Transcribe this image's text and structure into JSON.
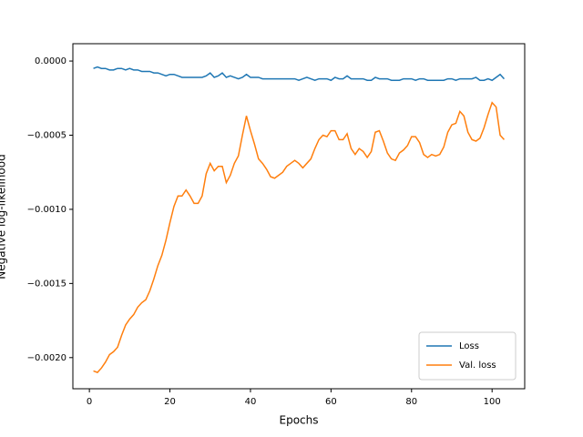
{
  "chart_data": {
    "type": "line",
    "x_label": "Epochs",
    "y_label": "Negative log-likelihood",
    "x": [
      1,
      2,
      3,
      4,
      5,
      6,
      7,
      8,
      9,
      10,
      11,
      12,
      13,
      14,
      15,
      16,
      17,
      18,
      19,
      20,
      21,
      22,
      23,
      24,
      25,
      26,
      27,
      28,
      29,
      30,
      31,
      32,
      33,
      34,
      35,
      36,
      37,
      38,
      39,
      40,
      41,
      42,
      43,
      44,
      45,
      46,
      47,
      48,
      49,
      50,
      51,
      52,
      53,
      54,
      55,
      56,
      57,
      58,
      59,
      60,
      61,
      62,
      63,
      64,
      65,
      66,
      67,
      68,
      69,
      70,
      71,
      72,
      73,
      74,
      75,
      76,
      77,
      78,
      79,
      80,
      81,
      82,
      83,
      84,
      85,
      86,
      87,
      88,
      89,
      90,
      91,
      92,
      93,
      94,
      95,
      96,
      97,
      98,
      99,
      100,
      101,
      102,
      103
    ],
    "series": [
      {
        "name": "Loss",
        "color": "#1f77b4",
        "values": [
          -5e-05,
          -4e-05,
          -5e-05,
          -5e-05,
          -6e-05,
          -6e-05,
          -5e-05,
          -5e-05,
          -6e-05,
          -5e-05,
          -6e-05,
          -6e-05,
          -7e-05,
          -7e-05,
          -7e-05,
          -8e-05,
          -8e-05,
          -9e-05,
          -0.0001,
          -9e-05,
          -9e-05,
          -0.0001,
          -0.00011,
          -0.00011,
          -0.00011,
          -0.00011,
          -0.00011,
          -0.00011,
          -0.0001,
          -8e-05,
          -0.00011,
          -0.0001,
          -8e-05,
          -0.00011,
          -0.0001,
          -0.00011,
          -0.00012,
          -0.00011,
          -9e-05,
          -0.00011,
          -0.00011,
          -0.00011,
          -0.00012,
          -0.00012,
          -0.00012,
          -0.00012,
          -0.00012,
          -0.00012,
          -0.00012,
          -0.00012,
          -0.00012,
          -0.00013,
          -0.00012,
          -0.00011,
          -0.00012,
          -0.00013,
          -0.00012,
          -0.00012,
          -0.00012,
          -0.00013,
          -0.00011,
          -0.00012,
          -0.00012,
          -0.0001,
          -0.00012,
          -0.00012,
          -0.00012,
          -0.00012,
          -0.00013,
          -0.00013,
          -0.00011,
          -0.00012,
          -0.00012,
          -0.00012,
          -0.00013,
          -0.00013,
          -0.00013,
          -0.00012,
          -0.00012,
          -0.00012,
          -0.00013,
          -0.00012,
          -0.00012,
          -0.00013,
          -0.00013,
          -0.00013,
          -0.00013,
          -0.00013,
          -0.00012,
          -0.00012,
          -0.00013,
          -0.00012,
          -0.00012,
          -0.00012,
          -0.00012,
          -0.00011,
          -0.00013,
          -0.00013,
          -0.00012,
          -0.00013,
          -0.00011,
          -9e-05,
          -0.00012
        ]
      },
      {
        "name": "Val. loss",
        "color": "#ff7f0e",
        "values": [
          -0.00209,
          -0.0021,
          -0.00207,
          -0.00203,
          -0.00198,
          -0.00196,
          -0.00193,
          -0.00185,
          -0.00178,
          -0.00174,
          -0.00171,
          -0.00166,
          -0.00163,
          -0.00161,
          -0.00155,
          -0.00147,
          -0.00138,
          -0.00131,
          -0.00121,
          -0.00109,
          -0.00098,
          -0.00091,
          -0.00091,
          -0.00087,
          -0.00091,
          -0.00096,
          -0.00096,
          -0.00091,
          -0.00076,
          -0.00069,
          -0.00074,
          -0.00071,
          -0.00071,
          -0.00082,
          -0.00077,
          -0.00069,
          -0.00064,
          -0.0005,
          -0.00037,
          -0.00047,
          -0.00056,
          -0.00066,
          -0.00069,
          -0.00073,
          -0.00078,
          -0.00079,
          -0.00077,
          -0.00075,
          -0.00071,
          -0.00069,
          -0.00067,
          -0.00069,
          -0.00072,
          -0.00069,
          -0.00066,
          -0.00059,
          -0.00053,
          -0.0005,
          -0.00051,
          -0.00047,
          -0.00047,
          -0.00053,
          -0.00053,
          -0.00049,
          -0.00059,
          -0.00063,
          -0.00059,
          -0.00061,
          -0.00065,
          -0.00061,
          -0.00048,
          -0.00047,
          -0.00054,
          -0.00062,
          -0.00066,
          -0.00067,
          -0.00062,
          -0.0006,
          -0.00057,
          -0.00051,
          -0.00051,
          -0.00055,
          -0.00063,
          -0.00065,
          -0.00063,
          -0.00064,
          -0.00063,
          -0.00058,
          -0.00048,
          -0.00043,
          -0.00042,
          -0.00034,
          -0.00037,
          -0.00048,
          -0.00053,
          -0.00054,
          -0.00052,
          -0.00045,
          -0.00036,
          -0.00028,
          -0.00031,
          -0.0005,
          -0.00053
        ]
      }
    ],
    "xlim": [
      -4.1,
      108.1
    ],
    "xticks": [
      0,
      20,
      40,
      60,
      80,
      100
    ],
    "ylim": [
      -0.00221,
      0.000117
    ],
    "yticks": [
      {
        "value": -0.002,
        "label": "−0.0020"
      },
      {
        "value": -0.0015,
        "label": "−0.0015"
      },
      {
        "value": -0.001,
        "label": "−0.0010"
      },
      {
        "value": -0.0005,
        "label": "−0.0005"
      },
      {
        "value": 0,
        "label": "0.0000"
      }
    ],
    "legend": "lower right",
    "grid": false
  }
}
